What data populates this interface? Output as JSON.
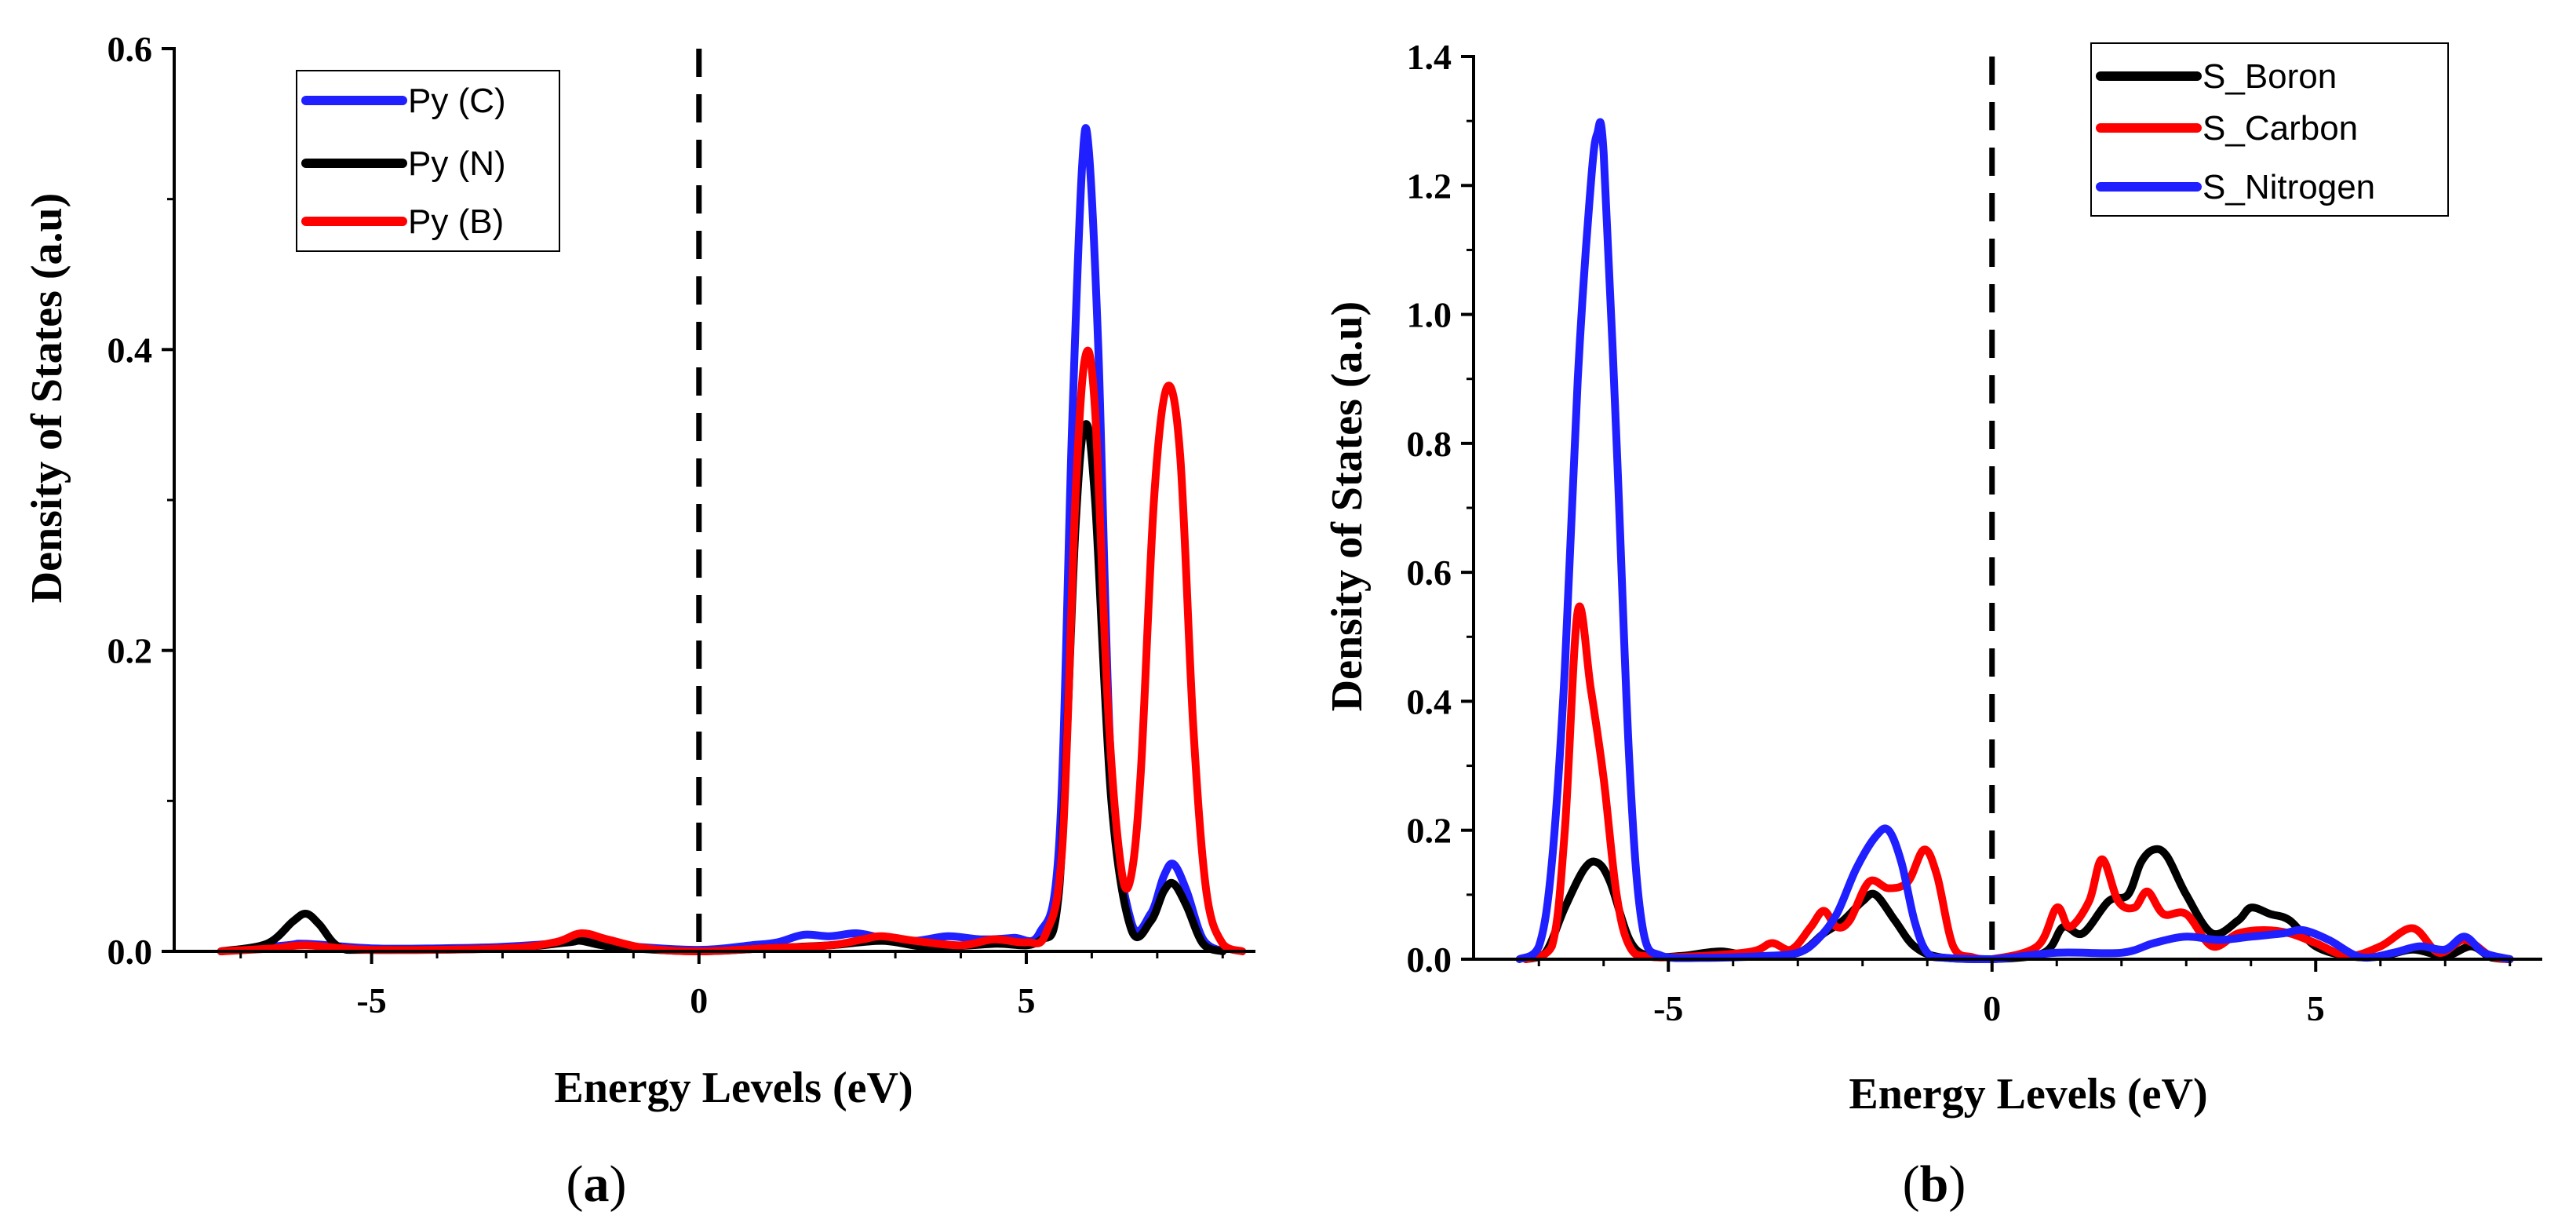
{
  "chart_data": [
    {
      "type": "line",
      "panel_label": "a",
      "title": "",
      "xlabel": "Energy Levels (eV)",
      "ylabel": "Density of States (a.u)",
      "xlim": [
        -7.5,
        8.5
      ],
      "ylim": [
        0,
        0.6
      ],
      "xticks": [
        -5,
        0,
        5
      ],
      "xtick_labels": [
        "-5",
        "0",
        "5"
      ],
      "yticks": [
        0.0,
        0.2,
        0.4,
        0.6
      ],
      "ytick_labels": [
        "0.0",
        "0.2",
        "0.4",
        "0.6"
      ],
      "grid": false,
      "legend_position": "top-left",
      "fermi_level": 0,
      "colors": {
        "blue": "#1f1fff",
        "black": "#000000",
        "red": "#ff0000",
        "dashed": "#000000"
      },
      "series": [
        {
          "name": "Py (C)",
          "color": "#1f1fff",
          "points": [
            [
              -7.3,
              0
            ],
            [
              -6.3,
              0.004
            ],
            [
              -6,
              0.005
            ],
            [
              -5,
              0.002
            ],
            [
              -4,
              0.002
            ],
            [
              -3,
              0.003
            ],
            [
              -2,
              0.006
            ],
            [
              -1.7,
              0.008
            ],
            [
              -1.2,
              0.004
            ],
            [
              0,
              0.001
            ],
            [
              0.8,
              0.004
            ],
            [
              1.2,
              0.006
            ],
            [
              1.6,
              0.011
            ],
            [
              2,
              0.01
            ],
            [
              2.4,
              0.012
            ],
            [
              2.8,
              0.009
            ],
            [
              3.3,
              0.007
            ],
            [
              3.8,
              0.01
            ],
            [
              4.3,
              0.008
            ],
            [
              4.8,
              0.009
            ],
            [
              5.2,
              0.012
            ],
            [
              5.5,
              0.07
            ],
            [
              5.7,
              0.35
            ],
            [
              5.85,
              0.52
            ],
            [
              5.95,
              0.535
            ],
            [
              6.1,
              0.4
            ],
            [
              6.3,
              0.12
            ],
            [
              6.6,
              0.02
            ],
            [
              6.9,
              0.025
            ],
            [
              7.1,
              0.05
            ],
            [
              7.25,
              0.058
            ],
            [
              7.45,
              0.04
            ],
            [
              7.7,
              0.008
            ],
            [
              8,
              0
            ]
          ]
        },
        {
          "name": "Py (N)",
          "color": "#000000",
          "points": [
            [
              -7.3,
              0
            ],
            [
              -6.6,
              0.005
            ],
            [
              -6.2,
              0.02
            ],
            [
              -6,
              0.025
            ],
            [
              -5.8,
              0.018
            ],
            [
              -5.5,
              0.003
            ],
            [
              -5,
              0.001
            ],
            [
              -3,
              0.002
            ],
            [
              -2,
              0.006
            ],
            [
              -1.8,
              0.007
            ],
            [
              -1.3,
              0.003
            ],
            [
              0,
              0
            ],
            [
              1,
              0.002
            ],
            [
              2,
              0.004
            ],
            [
              2.8,
              0.007
            ],
            [
              3.5,
              0.003
            ],
            [
              4.5,
              0.005
            ],
            [
              5.2,
              0.007
            ],
            [
              5.5,
              0.04
            ],
            [
              5.75,
              0.28
            ],
            [
              5.9,
              0.35
            ],
            [
              6.05,
              0.3
            ],
            [
              6.3,
              0.1
            ],
            [
              6.6,
              0.015
            ],
            [
              6.9,
              0.02
            ],
            [
              7.1,
              0.04
            ],
            [
              7.25,
              0.045
            ],
            [
              7.45,
              0.03
            ],
            [
              7.7,
              0.005
            ],
            [
              8,
              0
            ]
          ]
        },
        {
          "name": "Py (B)",
          "color": "#ff0000",
          "points": [
            [
              -7.3,
              0
            ],
            [
              -6.5,
              0.002
            ],
            [
              -6,
              0.004
            ],
            [
              -5,
              0.001
            ],
            [
              -3,
              0.002
            ],
            [
              -2.2,
              0.006
            ],
            [
              -1.8,
              0.012
            ],
            [
              -1.4,
              0.008
            ],
            [
              -0.8,
              0.002
            ],
            [
              0,
              0
            ],
            [
              1,
              0.002
            ],
            [
              2,
              0.004
            ],
            [
              2.5,
              0.008
            ],
            [
              2.8,
              0.01
            ],
            [
              3.3,
              0.007
            ],
            [
              4,
              0.004
            ],
            [
              4.5,
              0.008
            ],
            [
              5,
              0.006
            ],
            [
              5.3,
              0.012
            ],
            [
              5.55,
              0.07
            ],
            [
              5.75,
              0.3
            ],
            [
              5.9,
              0.395
            ],
            [
              6.05,
              0.36
            ],
            [
              6.25,
              0.16
            ],
            [
              6.45,
              0.055
            ],
            [
              6.6,
              0.05
            ],
            [
              6.75,
              0.12
            ],
            [
              6.95,
              0.3
            ],
            [
              7.15,
              0.375
            ],
            [
              7.35,
              0.33
            ],
            [
              7.55,
              0.15
            ],
            [
              7.75,
              0.04
            ],
            [
              8,
              0.005
            ],
            [
              8.3,
              0
            ]
          ]
        }
      ]
    },
    {
      "type": "line",
      "panel_label": "b",
      "title": "",
      "xlabel": "Energy Levels (eV)",
      "ylabel": "Density of States (a.u)",
      "xlim": [
        -7.5,
        8.5
      ],
      "ylim": [
        0,
        1.4
      ],
      "xticks": [
        -5,
        0,
        5
      ],
      "xtick_labels": [
        "-5",
        "0",
        "5"
      ],
      "yticks": [
        0.0,
        0.2,
        0.4,
        0.6,
        0.8,
        1.0,
        1.2,
        1.4
      ],
      "ytick_labels": [
        "0.0",
        "0.2",
        "0.4",
        "0.6",
        "0.8",
        "1.0",
        "1.2",
        "1.4"
      ],
      "grid": false,
      "legend_position": "top-right",
      "fermi_level": 0,
      "colors": {
        "blue": "#1f1fff",
        "black": "#000000",
        "red": "#ff0000",
        "dashed": "#000000"
      },
      "series": [
        {
          "name": "S_Boron",
          "color": "#000000",
          "points": [
            [
              -7.2,
              0
            ],
            [
              -6.9,
              0.01
            ],
            [
              -6.6,
              0.08
            ],
            [
              -6.3,
              0.14
            ],
            [
              -6.1,
              0.15
            ],
            [
              -5.9,
              0.12
            ],
            [
              -5.6,
              0.03
            ],
            [
              -5.3,
              0.005
            ],
            [
              -4.8,
              0.005
            ],
            [
              -4.2,
              0.012
            ],
            [
              -3.7,
              0.005
            ],
            [
              -3,
              0.01
            ],
            [
              -2.6,
              0.04
            ],
            [
              -2.3,
              0.06
            ],
            [
              -2,
              0.09
            ],
            [
              -1.8,
              0.1
            ],
            [
              -1.5,
              0.06
            ],
            [
              -1.2,
              0.02
            ],
            [
              -0.8,
              0.003
            ],
            [
              0,
              0
            ],
            [
              0.8,
              0.01
            ],
            [
              1.1,
              0.05
            ],
            [
              1.4,
              0.04
            ],
            [
              1.8,
              0.09
            ],
            [
              2.1,
              0.1
            ],
            [
              2.3,
              0.15
            ],
            [
              2.5,
              0.17
            ],
            [
              2.7,
              0.16
            ],
            [
              3,
              0.1
            ],
            [
              3.4,
              0.04
            ],
            [
              3.8,
              0.06
            ],
            [
              4,
              0.08
            ],
            [
              4.3,
              0.07
            ],
            [
              4.6,
              0.06
            ],
            [
              5,
              0.02
            ],
            [
              5.5,
              0.005
            ],
            [
              6,
              0.004
            ],
            [
              6.5,
              0.015
            ],
            [
              7,
              0.005
            ],
            [
              7.4,
              0.02
            ],
            [
              7.7,
              0.003
            ],
            [
              8,
              0
            ]
          ]
        },
        {
          "name": "S_Carbon",
          "color": "#ff0000",
          "points": [
            [
              -7.2,
              0
            ],
            [
              -6.8,
              0.02
            ],
            [
              -6.6,
              0.2
            ],
            [
              -6.4,
              0.54
            ],
            [
              -6.2,
              0.42
            ],
            [
              -6,
              0.28
            ],
            [
              -5.8,
              0.1
            ],
            [
              -5.6,
              0.02
            ],
            [
              -5.3,
              0.004
            ],
            [
              -4.5,
              0.005
            ],
            [
              -3.7,
              0.012
            ],
            [
              -3.4,
              0.025
            ],
            [
              -3.1,
              0.015
            ],
            [
              -2.8,
              0.05
            ],
            [
              -2.6,
              0.075
            ],
            [
              -2.4,
              0.05
            ],
            [
              -2.2,
              0.06
            ],
            [
              -1.9,
              0.12
            ],
            [
              -1.6,
              0.11
            ],
            [
              -1.3,
              0.12
            ],
            [
              -1.05,
              0.17
            ],
            [
              -0.85,
              0.13
            ],
            [
              -0.6,
              0.02
            ],
            [
              -0.3,
              0.003
            ],
            [
              0,
              0
            ],
            [
              0.7,
              0.02
            ],
            [
              1,
              0.08
            ],
            [
              1.2,
              0.05
            ],
            [
              1.5,
              0.09
            ],
            [
              1.7,
              0.155
            ],
            [
              1.95,
              0.09
            ],
            [
              2.2,
              0.08
            ],
            [
              2.4,
              0.105
            ],
            [
              2.65,
              0.07
            ],
            [
              3,
              0.07
            ],
            [
              3.4,
              0.02
            ],
            [
              3.8,
              0.04
            ],
            [
              4.2,
              0.045
            ],
            [
              4.6,
              0.04
            ],
            [
              5,
              0.025
            ],
            [
              5.5,
              0.005
            ],
            [
              6,
              0.02
            ],
            [
              6.5,
              0.048
            ],
            [
              6.9,
              0.01
            ],
            [
              7.3,
              0.03
            ],
            [
              7.7,
              0.005
            ],
            [
              8,
              0
            ]
          ]
        },
        {
          "name": "S_Nitrogen",
          "color": "#1f1fff",
          "points": [
            [
              -7.3,
              0
            ],
            [
              -7,
              0.02
            ],
            [
              -6.8,
              0.15
            ],
            [
              -6.6,
              0.45
            ],
            [
              -6.4,
              0.9
            ],
            [
              -6.2,
              1.2
            ],
            [
              -6.1,
              1.28
            ],
            [
              -6,
              1.25
            ],
            [
              -5.8,
              0.8
            ],
            [
              -5.6,
              0.3
            ],
            [
              -5.4,
              0.05
            ],
            [
              -5.1,
              0.005
            ],
            [
              -4.5,
              0.002
            ],
            [
              -3.5,
              0.005
            ],
            [
              -3,
              0.01
            ],
            [
              -2.7,
              0.03
            ],
            [
              -2.4,
              0.07
            ],
            [
              -2.1,
              0.14
            ],
            [
              -1.8,
              0.19
            ],
            [
              -1.6,
              0.2
            ],
            [
              -1.4,
              0.15
            ],
            [
              -1.2,
              0.06
            ],
            [
              -1,
              0.01
            ],
            [
              -0.7,
              0.002
            ],
            [
              0,
              0
            ],
            [
              1,
              0.01
            ],
            [
              2,
              0.01
            ],
            [
              2.5,
              0.025
            ],
            [
              3,
              0.035
            ],
            [
              3.5,
              0.03
            ],
            [
              4,
              0.035
            ],
            [
              4.5,
              0.04
            ],
            [
              4.8,
              0.045
            ],
            [
              5.2,
              0.03
            ],
            [
              5.7,
              0.003
            ],
            [
              6.2,
              0.01
            ],
            [
              6.6,
              0.02
            ],
            [
              7,
              0.015
            ],
            [
              7.3,
              0.035
            ],
            [
              7.6,
              0.01
            ],
            [
              8,
              0
            ]
          ]
        }
      ]
    }
  ]
}
